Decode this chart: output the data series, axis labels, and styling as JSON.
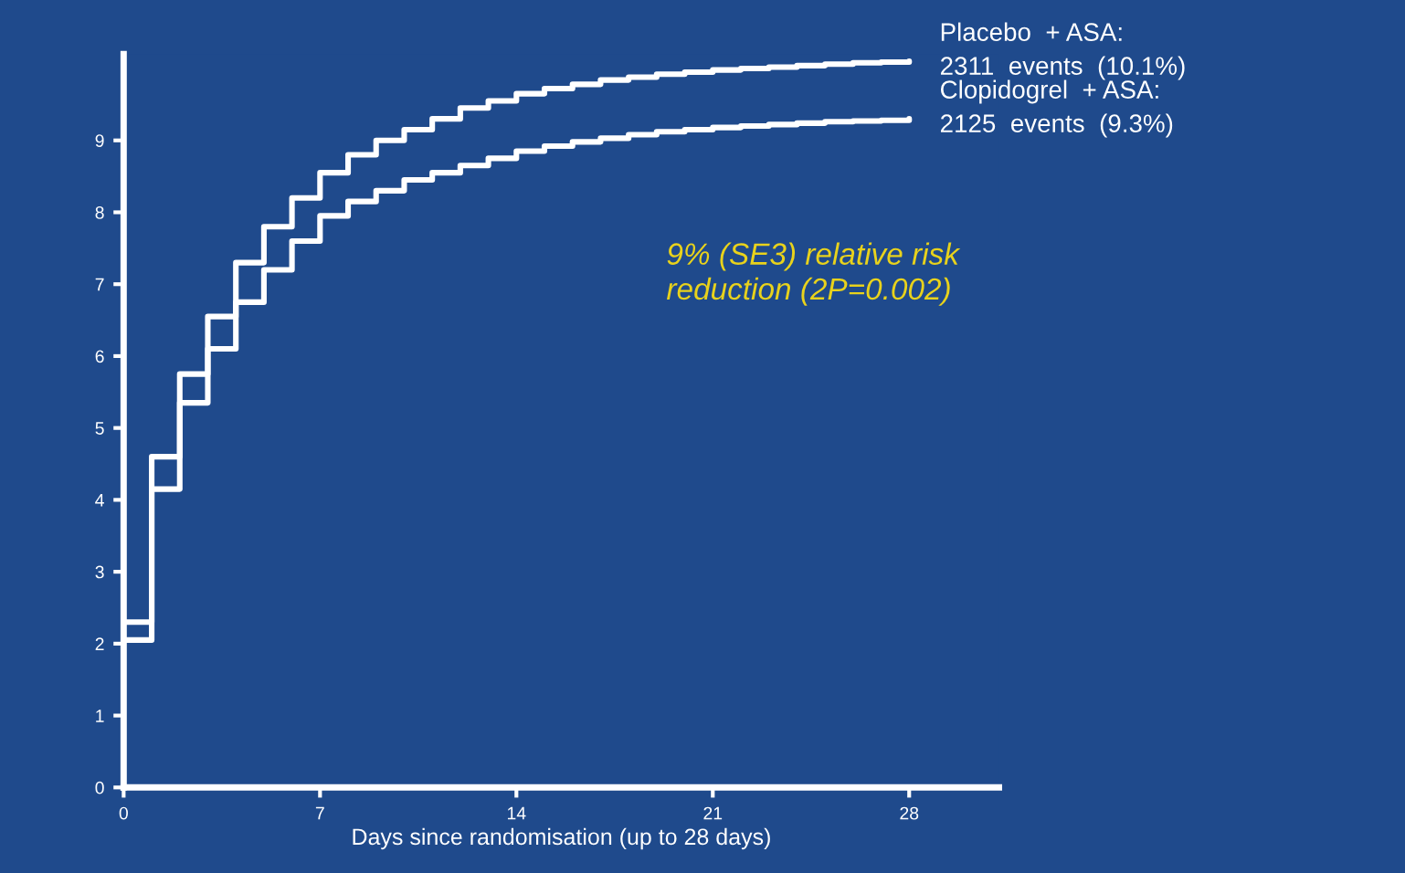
{
  "chart_data": {
    "type": "step",
    "xlabel": "Days since randomisation (up to 28 days)",
    "x": [
      0,
      1,
      2,
      3,
      4,
      5,
      6,
      7,
      8,
      9,
      10,
      11,
      12,
      13,
      14,
      15,
      16,
      17,
      18,
      19,
      20,
      21,
      22,
      23,
      24,
      25,
      26,
      27,
      28
    ],
    "series": [
      {
        "name": "Placebo  + ASA:",
        "color": "#ffffff",
        "values": [
          2.3,
          4.6,
          5.75,
          6.55,
          7.3,
          7.8,
          8.2,
          8.55,
          8.8,
          9.0,
          9.15,
          9.3,
          9.45,
          9.55,
          9.65,
          9.72,
          9.78,
          9.84,
          9.88,
          9.92,
          9.95,
          9.98,
          10.0,
          10.02,
          10.04,
          10.06,
          10.08,
          10.09,
          10.1
        ]
      },
      {
        "name": "Clopidogrel  + ASA:",
        "color": "#ffffff",
        "values": [
          2.05,
          4.15,
          5.35,
          6.1,
          6.75,
          7.2,
          7.6,
          7.95,
          8.15,
          8.3,
          8.45,
          8.55,
          8.65,
          8.75,
          8.85,
          8.92,
          8.98,
          9.03,
          9.08,
          9.12,
          9.15,
          9.18,
          9.2,
          9.22,
          9.24,
          9.26,
          9.27,
          9.28,
          9.3
        ]
      }
    ],
    "annotations": [
      "2311  events  (10.1%)",
      "2125  events  (9.3%)",
      "9% (SE3) relative risk\nreduction (2P=0.002)"
    ],
    "xlim": [
      0,
      31.2
    ],
    "ylim": [
      0,
      10.2
    ],
    "xticks": [
      0,
      7,
      14,
      21,
      28
    ],
    "yticks": [
      0,
      1,
      2,
      3,
      4,
      5,
      6,
      7,
      8,
      9
    ],
    "grid": false,
    "legend": false,
    "line_style": "solid",
    "marker": "none"
  }
}
